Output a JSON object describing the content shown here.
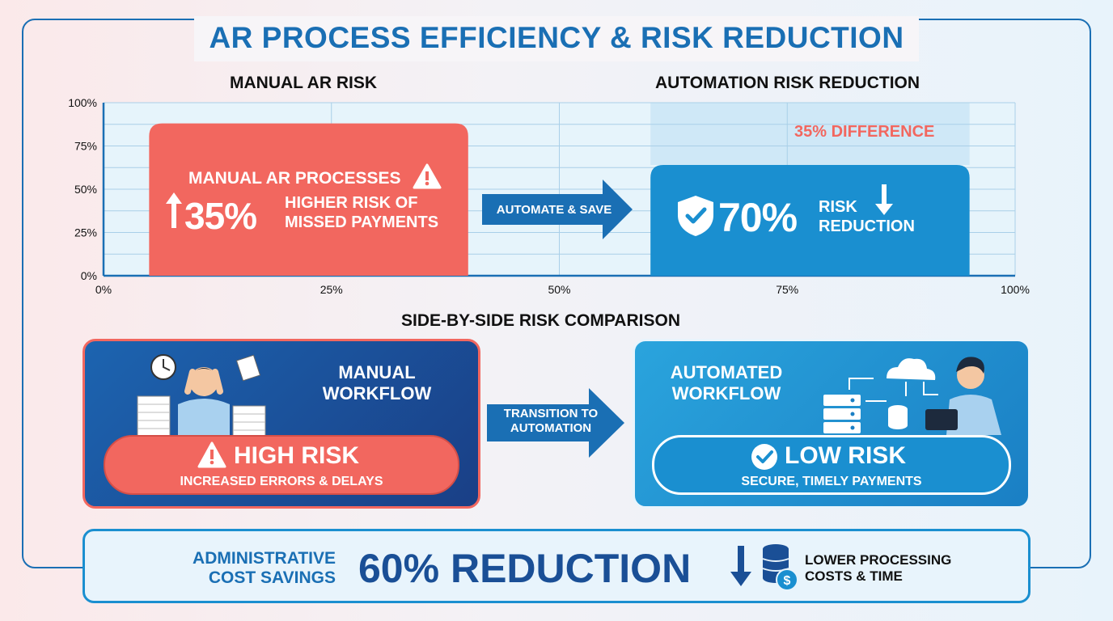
{
  "title": "AR PROCESS EFFICIENCY & RISK REDUCTION",
  "chart_data": {
    "type": "bar",
    "left_heading": "MANUAL AR RISK",
    "right_heading": "AUTOMATION RISK REDUCTION",
    "x_ticks": [
      "0%",
      "25%",
      "50%",
      "75%",
      "100%"
    ],
    "y_ticks": [
      "0%",
      "25%",
      "50%",
      "75%",
      "100%"
    ],
    "xlim": [
      0,
      100
    ],
    "ylim": [
      0,
      100
    ],
    "bars": [
      {
        "name": "manual",
        "x_start": 5,
        "x_end": 40,
        "y": 88,
        "color": "#f2675f"
      },
      {
        "name": "automation",
        "x_start": 60,
        "x_end": 95,
        "y": 64,
        "color": "#1a8fd0"
      }
    ],
    "highlight": {
      "x_start": 60,
      "x_end": 95,
      "y_start": 64,
      "y_end": 100,
      "label": "35% DIFFERENCE"
    },
    "manual_label": {
      "line1": "MANUAL AR PROCESSES",
      "big": "35%",
      "desc1": "HIGHER RISK OF",
      "desc2": "MISSED PAYMENTS"
    },
    "arrow_label": "AUTOMATE & SAVE",
    "automation_label": {
      "big": "70%",
      "desc1": "RISK",
      "desc2": "REDUCTION"
    }
  },
  "comparison": {
    "heading": "SIDE-BY-SIDE RISK COMPARISON",
    "manual": {
      "title1": "MANUAL",
      "title2": "WORKFLOW",
      "risk": "HIGH RISK",
      "sub": "INCREASED ERRORS & DELAYS"
    },
    "transition1": "TRANSITION TO",
    "transition2": "AUTOMATION",
    "automated": {
      "title1": "AUTOMATED",
      "title2": "WORKFLOW",
      "risk": "LOW RISK",
      "sub": "SECURE, TIMELY PAYMENTS"
    }
  },
  "footer": {
    "label1": "ADMINISTRATIVE",
    "label2": "COST SAVINGS",
    "big": "60% REDUCTION",
    "desc1": "LOWER PROCESSING",
    "desc2": "COSTS & TIME"
  },
  "colors": {
    "accent": "#1a6fb4",
    "red": "#f2675f",
    "blue": "#1a8fd0",
    "dark_blue": "#1a4f96"
  }
}
